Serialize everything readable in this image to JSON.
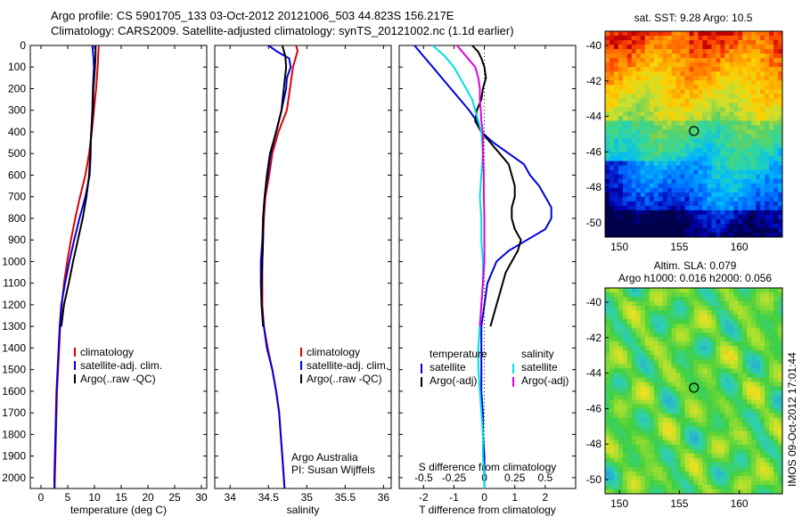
{
  "header": {
    "line1": "Argo profile: CS 5901705_133 03-Oct-2012 20121006_503 44.823S 156.217E",
    "line2": "Climatology: CARS2009. Satellite-adjusted climatology: synTS_20121002.nc (1.1d earlier)"
  },
  "credit": {
    "line1": "Argo Australia",
    "line2": "PI: Susan Wijffels"
  },
  "side_stamp": "IMOS 09-Oct-2012 17:01:44",
  "colors": {
    "climatology": "#e00000",
    "satellite": "#0000e0",
    "argo": "#000000",
    "satellite_salinity": "#00e0e0",
    "argo_salinity": "#e000e0"
  },
  "chart_data": [
    {
      "type": "line",
      "name": "temperature",
      "xlabel": "temperature (deg C)",
      "xlim": [
        -2,
        31
      ],
      "xticks": [
        0,
        5,
        10,
        15,
        20,
        25,
        30
      ],
      "ylim": [
        0,
        2050
      ],
      "yticks": [
        0,
        100,
        200,
        300,
        400,
        500,
        600,
        700,
        800,
        900,
        1000,
        1100,
        1200,
        1300,
        1400,
        1500,
        1600,
        1700,
        1800,
        1900,
        2000
      ],
      "legend": [
        "climatology",
        "satellite-adj. clim.",
        "Argo(..raw -QC)"
      ],
      "series": [
        {
          "key": "climatology",
          "color_key": "climatology",
          "depth": [
            0,
            100,
            200,
            300,
            400,
            500,
            600,
            700,
            800,
            900,
            1000,
            1100,
            1200,
            1300,
            1400,
            1500,
            1600,
            1700,
            1800,
            1900,
            2000,
            2050
          ],
          "values": [
            10.8,
            10.6,
            10.3,
            9.9,
            9.5,
            9.0,
            8.3,
            7.3,
            6.4,
            5.6,
            4.9,
            4.3,
            3.9,
            3.6,
            3.4,
            3.2,
            3.0,
            2.9,
            2.8,
            2.7,
            2.6,
            2.55
          ]
        },
        {
          "key": "satellite",
          "color_key": "satellite",
          "depth": [
            0,
            50,
            100,
            200,
            300,
            400,
            450,
            500,
            600,
            700,
            800,
            900,
            1000,
            1100,
            1200,
            1300,
            1400,
            1500,
            1600,
            1700,
            1800,
            1900,
            2000,
            2050
          ],
          "values": [
            9.6,
            9.8,
            9.9,
            9.7,
            9.6,
            9.4,
            9.3,
            9.3,
            9.1,
            8.3,
            7.2,
            6.2,
            5.3,
            4.5,
            3.8,
            3.5,
            3.3,
            3.1,
            2.9,
            2.8,
            2.7,
            2.6,
            2.5,
            2.5
          ]
        },
        {
          "key": "argo",
          "color_key": "argo",
          "depth": [
            0,
            50,
            100,
            200,
            300,
            400,
            500,
            600,
            700,
            800,
            900,
            1000,
            1100,
            1200,
            1300
          ],
          "values": [
            10.2,
            10.2,
            10.1,
            9.8,
            9.7,
            9.4,
            9.2,
            9.0,
            8.5,
            7.8,
            6.9,
            6.0,
            5.2,
            4.3,
            3.8
          ]
        }
      ]
    },
    {
      "type": "line",
      "name": "salinity",
      "xlabel": "salinity",
      "xlim": [
        33.8,
        36.1
      ],
      "xticks": [
        34,
        34.5,
        35,
        35.5,
        36
      ],
      "ylim": [
        0,
        2050
      ],
      "legend": [
        "climatology",
        "satellite-adj. clim.",
        "Argo(..raw -QC)"
      ],
      "series": [
        {
          "key": "climatology",
          "color_key": "climatology",
          "depth": [
            0,
            25,
            50,
            100,
            200,
            300,
            400,
            500,
            600,
            700,
            800,
            900,
            1000,
            1100,
            1200,
            1300,
            1400,
            1500,
            1600,
            1700,
            1800,
            1900,
            2000,
            2050
          ],
          "values": [
            34.86,
            34.88,
            34.86,
            34.82,
            34.78,
            34.74,
            34.63,
            34.55,
            34.51,
            34.46,
            34.44,
            34.43,
            34.42,
            34.42,
            34.42,
            34.44,
            34.49,
            34.55,
            34.6,
            34.64,
            34.66,
            34.68,
            34.7,
            34.71
          ]
        },
        {
          "key": "satellite",
          "color_key": "satellite",
          "depth": [
            0,
            30,
            60,
            100,
            150,
            200,
            300,
            400,
            500,
            600,
            700,
            800,
            900,
            1000,
            1100,
            1200,
            1300,
            1400,
            1500,
            1600,
            1700,
            1800,
            1900,
            2000,
            2050
          ],
          "values": [
            34.5,
            34.62,
            34.77,
            34.79,
            34.74,
            34.73,
            34.67,
            34.6,
            34.53,
            34.49,
            34.45,
            34.43,
            34.42,
            34.4,
            34.4,
            34.41,
            34.44,
            34.48,
            34.55,
            34.6,
            34.64,
            34.66,
            34.68,
            34.7,
            34.71
          ]
        },
        {
          "key": "argo",
          "color_key": "argo",
          "depth": [
            0,
            50,
            100,
            200,
            300,
            400,
            500,
            600,
            700,
            800,
            900,
            1000,
            1100,
            1200,
            1300
          ],
          "values": [
            34.68,
            34.72,
            34.73,
            34.7,
            34.67,
            34.6,
            34.52,
            34.48,
            34.45,
            34.43,
            34.43,
            34.42,
            34.41,
            34.41,
            34.43
          ]
        }
      ]
    },
    {
      "type": "line",
      "name": "difference",
      "xlabel": "T difference from climatology",
      "xlabel_top": "S difference from climatology",
      "xlim": [
        -2.8,
        3.0
      ],
      "xticks": [
        -2,
        -1,
        0,
        1,
        2
      ],
      "xticks_salinity_labels": [
        "-0.5",
        "-0.25",
        "0",
        "0.25",
        "0.5"
      ],
      "xticks_salinity_positions": [
        -2,
        -1,
        0,
        1,
        2
      ],
      "ylim": [
        0,
        2050
      ],
      "zero_line": 0,
      "legend_headers": [
        "temperature",
        "salinity"
      ],
      "legend": [
        {
          "label": "satellite",
          "color_key": "satellite"
        },
        {
          "label": "Argo(-adj)",
          "color_key": "argo"
        },
        {
          "label": "satellite",
          "color_key": "satellite_salinity"
        },
        {
          "label": "Argo(-adj)",
          "color_key": "argo_salinity"
        }
      ],
      "series": [
        {
          "key": "T_satellite",
          "color_key": "satellite",
          "depth": [
            0,
            50,
            100,
            150,
            200,
            250,
            300,
            350,
            400,
            450,
            500,
            550,
            600,
            650,
            700,
            750,
            800,
            850,
            900,
            950,
            1000,
            1100,
            1200,
            1300,
            1400,
            1500,
            1600,
            1700,
            1800,
            1900,
            2000,
            2050
          ],
          "values": [
            -2.3,
            -2.0,
            -1.7,
            -1.4,
            -1.1,
            -0.8,
            -0.5,
            -0.25,
            -0.1,
            0.3,
            0.8,
            1.3,
            1.5,
            1.8,
            2.0,
            2.2,
            2.2,
            2.0,
            1.4,
            0.8,
            0.4,
            0.1,
            0.0,
            -0.1,
            -0.1,
            -0.1,
            -0.1,
            -0.05,
            -0.05,
            0.0,
            0.0,
            0.0
          ]
        },
        {
          "key": "T_argo",
          "color_key": "argo",
          "depth": [
            0,
            30,
            60,
            100,
            150,
            200,
            250,
            300,
            350,
            400,
            450,
            500,
            550,
            600,
            650,
            700,
            750,
            800,
            850,
            900,
            950,
            1000,
            1050,
            1100,
            1150,
            1200,
            1250,
            1300
          ],
          "values": [
            -0.4,
            -0.2,
            -0.1,
            0.0,
            0.05,
            -0.05,
            -0.1,
            -0.25,
            -0.3,
            -0.1,
            0.2,
            0.5,
            0.8,
            0.9,
            1.0,
            1.0,
            0.9,
            0.9,
            1.0,
            1.2,
            1.1,
            0.9,
            0.7,
            0.6,
            0.5,
            0.4,
            0.3,
            0.2
          ]
        },
        {
          "key": "S_satellite",
          "color_key": "satellite_salinity",
          "depth": [
            0,
            50,
            100,
            150,
            200,
            250,
            300,
            350,
            400,
            500,
            600,
            700,
            800,
            900,
            1000,
            1100,
            1200,
            1300,
            1400,
            1500,
            1600,
            1700,
            1800,
            1900,
            2000,
            2050
          ],
          "values": [
            -1.7,
            -1.3,
            -1.0,
            -0.8,
            -0.6,
            -0.4,
            -0.3,
            -0.2,
            -0.1,
            -0.05,
            -0.1,
            -0.15,
            -0.1,
            -0.1,
            -0.05,
            -0.05,
            -0.1,
            -0.15,
            -0.2,
            -0.2,
            -0.15,
            -0.1,
            -0.05,
            -0.05,
            0.0,
            0.0
          ]
        },
        {
          "key": "S_argo",
          "color_key": "argo_salinity",
          "depth": [
            0,
            50,
            100,
            150,
            200,
            250,
            300,
            350,
            400,
            500,
            600,
            700,
            800,
            900,
            1000,
            1100,
            1200,
            1300
          ],
          "values": [
            -0.9,
            -0.6,
            -0.3,
            -0.2,
            -0.15,
            -0.15,
            -0.12,
            -0.1,
            -0.05,
            -0.05,
            -0.02,
            -0.02,
            0.0,
            0.0,
            0.0,
            -0.05,
            -0.1,
            -0.15
          ]
        }
      ]
    },
    {
      "type": "heatmap",
      "name": "sst_map",
      "title": "sat. SST: 9.28 Argo: 10.5",
      "xlim": [
        148.8,
        163.6
      ],
      "ylim": [
        -50.8,
        -39.2
      ],
      "xticks": [
        150,
        155,
        160
      ],
      "yticks": [
        -40,
        -42,
        -44,
        -46,
        -48,
        -50
      ],
      "marker": {
        "lon": 156.217,
        "lat": -44.823
      }
    },
    {
      "type": "heatmap",
      "name": "sla_map",
      "title_line1": "Altim. SLA: 0.079",
      "title_line2": "Argo h1000: 0.016 h2000: 0.056",
      "xlim": [
        148.8,
        163.6
      ],
      "ylim": [
        -50.8,
        -39.2
      ],
      "xticks": [
        150,
        155,
        160
      ],
      "yticks": [
        -40,
        -42,
        -44,
        -46,
        -48,
        -50
      ],
      "marker": {
        "lon": 156.217,
        "lat": -44.823
      }
    }
  ]
}
